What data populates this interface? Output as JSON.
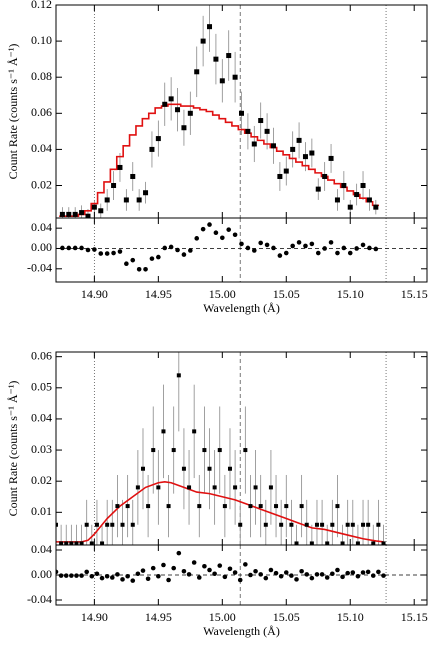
{
  "chart_data": [
    {
      "type": "scatter",
      "ylabel": "Count Rate (counts s⁻¹ Å⁻¹)",
      "color": "#000000",
      "x": [
        14.875,
        14.88,
        14.885,
        14.89,
        14.895,
        14.9,
        14.905,
        14.91,
        14.915,
        14.92,
        14.925,
        14.93,
        14.935,
        14.94,
        14.945,
        14.95,
        14.955,
        14.96,
        14.965,
        14.97,
        14.975,
        14.98,
        14.985,
        14.99,
        14.995,
        15,
        15.005,
        15.01,
        15.015,
        15.02,
        15.025,
        15.03,
        15.035,
        15.04,
        15.045,
        15.05,
        15.055,
        15.06,
        15.065,
        15.07,
        15.075,
        15.08,
        15.085,
        15.09,
        15.095,
        15.1,
        15.105,
        15.11,
        15.115,
        15.12
      ],
      "values": [
        0.004,
        0.004,
        0.004,
        0.005,
        0.003,
        0.008,
        0.006,
        0.012,
        0.02,
        0.03,
        0.012,
        0.025,
        0.012,
        0.016,
        0.04,
        0.046,
        0.065,
        0.068,
        0.062,
        0.052,
        0.06,
        0.083,
        0.1,
        0.108,
        0.09,
        0.078,
        0.092,
        0.08,
        0.06,
        0.05,
        0.043,
        0.056,
        0.05,
        0.042,
        0.025,
        0.028,
        0.04,
        0.045,
        0.036,
        0.038,
        0.018,
        0.025,
        0.035,
        0.012,
        0.02,
        0.008,
        0.015,
        0.02,
        0.012,
        0.008
      ],
      "errors": [
        0.004,
        0.004,
        0.004,
        0.004,
        0.004,
        0.004,
        0.004,
        0.006,
        0.008,
        0.008,
        0.006,
        0.008,
        0.006,
        0.006,
        0.01,
        0.01,
        0.012,
        0.012,
        0.012,
        0.01,
        0.012,
        0.014,
        0.014,
        0.014,
        0.014,
        0.012,
        0.014,
        0.014,
        0.012,
        0.01,
        0.01,
        0.01,
        0.01,
        0.01,
        0.008,
        0.008,
        0.01,
        0.01,
        0.008,
        0.008,
        0.006,
        0.008,
        0.008,
        0.006,
        0.008,
        0.004,
        0.006,
        0.008,
        0.006,
        0.004
      ],
      "model": {
        "color": "#e01010",
        "step": true,
        "values": [
          0.003,
          0.003,
          0.003,
          0.004,
          0.006,
          0.01,
          0.016,
          0.022,
          0.029,
          0.036,
          0.042,
          0.048,
          0.053,
          0.057,
          0.06,
          0.063,
          0.064,
          0.065,
          0.065,
          0.064,
          0.064,
          0.063,
          0.062,
          0.061,
          0.059,
          0.057,
          0.055,
          0.053,
          0.051,
          0.049,
          0.047,
          0.045,
          0.043,
          0.041,
          0.039,
          0.037,
          0.035,
          0.033,
          0.031,
          0.029,
          0.027,
          0.025,
          0.023,
          0.021,
          0.019,
          0.017,
          0.015,
          0.013,
          0.011,
          0.009
        ]
      },
      "xlim": [
        14.87,
        15.16
      ],
      "ylim": [
        0.002,
        0.12
      ],
      "xticks": [
        14.9,
        14.95,
        15,
        15.05,
        15.1,
        15.15
      ],
      "yticks": [
        0.02,
        0.04,
        0.06,
        0.08,
        {
          "value": 0.1,
          "label": "0.10"
        },
        0.12
      ],
      "vlines": [
        {
          "x": 14.9,
          "style": "dotted"
        },
        {
          "x": 15.014,
          "style": "dashed"
        },
        {
          "x": 15.128,
          "style": "dotted"
        }
      ]
    },
    {
      "type": "residual",
      "xlabel": "Wavelength (Å)",
      "color": "#000000",
      "x": [
        14.875,
        14.88,
        14.885,
        14.89,
        14.895,
        14.9,
        14.905,
        14.91,
        14.915,
        14.92,
        14.925,
        14.93,
        14.935,
        14.94,
        14.945,
        14.95,
        14.955,
        14.96,
        14.965,
        14.97,
        14.975,
        14.98,
        14.985,
        14.99,
        14.995,
        15,
        15.005,
        15.01,
        15.015,
        15.02,
        15.025,
        15.03,
        15.035,
        15.04,
        15.045,
        15.05,
        15.055,
        15.06,
        15.065,
        15.07,
        15.075,
        15.08,
        15.085,
        15.09,
        15.095,
        15.1,
        15.105,
        15.11,
        15.115,
        15.12
      ],
      "values": [
        0.001,
        0.001,
        0.001,
        0.001,
        -0.003,
        -0.002,
        -0.01,
        -0.01,
        -0.009,
        -0.006,
        -0.03,
        -0.023,
        -0.041,
        -0.041,
        -0.02,
        -0.017,
        0.001,
        0.003,
        -0.003,
        -0.012,
        -0.004,
        0.02,
        0.038,
        0.047,
        0.031,
        0.021,
        0.037,
        0.027,
        0.009,
        0.001,
        -0.004,
        0.011,
        0.007,
        0.001,
        -0.014,
        -0.009,
        0.005,
        0.012,
        0.005,
        0.009,
        -0.009,
        0,
        0.012,
        -0.009,
        0.001,
        -0.009,
        0,
        0.007,
        0.001,
        -0.001
      ],
      "hline": 0,
      "xlim": [
        14.87,
        15.16
      ],
      "ylim": [
        -0.066,
        0.06
      ],
      "xticks": [
        {
          "value": 14.9,
          "label": "14.90"
        },
        {
          "value": 14.95,
          "label": "14.95"
        },
        {
          "value": 15,
          "label": "15.00"
        },
        {
          "value": 15.05,
          "label": "15.05"
        },
        {
          "value": 15.1,
          "label": "15.10"
        },
        {
          "value": 15.15,
          "label": "15.15"
        }
      ],
      "yticks": [
        0.04,
        {
          "value": 0,
          "label": "0.00"
        },
        -0.04
      ],
      "vlines": [
        {
          "x": 14.9,
          "style": "dotted"
        },
        {
          "x": 15.014,
          "style": "dashed"
        },
        {
          "x": 15.128,
          "style": "dotted"
        }
      ]
    },
    {
      "type": "scatter",
      "ylabel": "Count Rate (counts s⁻¹ Å⁻¹)",
      "color": "#000000",
      "x": [
        14.87,
        14.874,
        14.878,
        14.882,
        14.886,
        14.89,
        14.894,
        14.898,
        14.902,
        14.906,
        14.91,
        14.914,
        14.918,
        14.922,
        14.926,
        14.93,
        14.934,
        14.938,
        14.942,
        14.946,
        14.95,
        14.954,
        14.958,
        14.962,
        14.966,
        14.97,
        14.974,
        14.978,
        14.982,
        14.986,
        14.99,
        14.994,
        14.998,
        15.002,
        15.006,
        15.01,
        15.014,
        15.018,
        15.022,
        15.026,
        15.03,
        15.034,
        15.038,
        15.042,
        15.046,
        15.05,
        15.054,
        15.058,
        15.062,
        15.066,
        15.07,
        15.074,
        15.078,
        15.082,
        15.086,
        15.09,
        15.094,
        15.098,
        15.102,
        15.106,
        15.11,
        15.114,
        15.118,
        15.122,
        15.126
      ],
      "values": [
        0.006,
        0,
        0,
        0,
        0,
        0,
        0.006,
        0,
        0.006,
        0,
        0.006,
        0.006,
        0.012,
        0.006,
        0.012,
        0.006,
        0.018,
        0.024,
        0.012,
        0.03,
        0.018,
        0.036,
        0.012,
        0.03,
        0.054,
        0.024,
        0.018,
        0.036,
        0.012,
        0.03,
        0.024,
        0.018,
        0.03,
        0.012,
        0.024,
        0.018,
        0.006,
        0.03,
        0.012,
        0.018,
        0.012,
        0.006,
        0.018,
        0.012,
        0.006,
        0.012,
        0.006,
        0,
        0.012,
        0.006,
        0,
        0.006,
        0.006,
        0,
        0.006,
        0.012,
        0,
        0.006,
        0.006,
        0,
        0.006,
        0.006,
        0,
        0.006,
        0
      ],
      "errors": [
        0.008,
        0.006,
        0.006,
        0.006,
        0.006,
        0.006,
        0.008,
        0.006,
        0.008,
        0.006,
        0.008,
        0.008,
        0.01,
        0.008,
        0.01,
        0.008,
        0.012,
        0.013,
        0.01,
        0.014,
        0.012,
        0.015,
        0.01,
        0.014,
        0.018,
        0.013,
        0.012,
        0.015,
        0.01,
        0.014,
        0.013,
        0.012,
        0.014,
        0.01,
        0.013,
        0.012,
        0.008,
        0.014,
        0.01,
        0.012,
        0.01,
        0.008,
        0.012,
        0.01,
        0.008,
        0.01,
        0.008,
        0.006,
        0.01,
        0.008,
        0.006,
        0.008,
        0.008,
        0.006,
        0.008,
        0.01,
        0.006,
        0.008,
        0.008,
        0.006,
        0.008,
        0.008,
        0.006,
        0.008,
        0.006
      ],
      "model": {
        "color": "#e01010",
        "step": false,
        "x": [
          14.87,
          14.88,
          14.89,
          14.895,
          14.9,
          14.91,
          14.92,
          14.93,
          14.94,
          14.95,
          14.955,
          14.96,
          14.97,
          14.98,
          14.99,
          15,
          15.01,
          15.02,
          15.03,
          15.04,
          15.05,
          15.06,
          15.07,
          15.08,
          15.09,
          15.1,
          15.11,
          15.12,
          15.126
        ],
        "values": [
          0.0005,
          0.0005,
          0.0005,
          0.001,
          0.003,
          0.008,
          0.012,
          0.015,
          0.018,
          0.0195,
          0.0198,
          0.0195,
          0.018,
          0.0165,
          0.016,
          0.015,
          0.014,
          0.0125,
          0.011,
          0.0095,
          0.008,
          0.0065,
          0.005,
          0.0045,
          0.0035,
          0.0025,
          0.0015,
          0.0008,
          0.0005
        ]
      },
      "xlim": [
        14.87,
        15.16
      ],
      "ylim": [
        -0.0005,
        0.0615
      ],
      "xticks": [
        14.9,
        14.95,
        15,
        15.05,
        15.1,
        15.15
      ],
      "yticks": [
        0.01,
        0.02,
        0.03,
        0.04,
        0.05,
        0.06
      ],
      "vlines": [
        {
          "x": 14.9,
          "style": "dotted"
        },
        {
          "x": 15.014,
          "style": "dashed"
        },
        {
          "x": 15.128,
          "style": "dotted"
        }
      ]
    },
    {
      "type": "residual",
      "xlabel": "Wavelength (Å)",
      "color": "#000000",
      "x": [
        14.87,
        14.874,
        14.878,
        14.882,
        14.886,
        14.89,
        14.894,
        14.898,
        14.902,
        14.906,
        14.91,
        14.914,
        14.918,
        14.922,
        14.926,
        14.93,
        14.934,
        14.938,
        14.942,
        14.946,
        14.95,
        14.954,
        14.958,
        14.962,
        14.966,
        14.97,
        14.974,
        14.978,
        14.982,
        14.986,
        14.99,
        14.994,
        14.998,
        15.002,
        15.006,
        15.01,
        15.014,
        15.018,
        15.022,
        15.026,
        15.03,
        15.034,
        15.038,
        15.042,
        15.046,
        15.05,
        15.054,
        15.058,
        15.062,
        15.066,
        15.07,
        15.074,
        15.078,
        15.082,
        15.086,
        15.09,
        15.094,
        15.098,
        15.102,
        15.106,
        15.11,
        15.114,
        15.118,
        15.122,
        15.126
      ],
      "values": [
        0.005,
        -0.001,
        -0.001,
        -0.001,
        -0.001,
        -0.001,
        0.005,
        -0.002,
        0.002,
        -0.005,
        -0.002,
        -0.004,
        0.001,
        -0.007,
        -0.002,
        -0.009,
        0.002,
        0.007,
        -0.006,
        0.011,
        -0.002,
        0.016,
        -0.008,
        0.011,
        0.035,
        0.006,
        0.001,
        0.02,
        -0.004,
        0.014,
        0.008,
        0.002,
        0.015,
        -0.003,
        0.01,
        0.004,
        -0.008,
        0.017,
        0,
        0.006,
        0.001,
        -0.005,
        0.008,
        0.003,
        -0.002,
        0.004,
        -0.001,
        -0.007,
        0.006,
        0.001,
        -0.005,
        0.001,
        0.001,
        -0.004,
        0.002,
        0.008,
        -0.003,
        0.003,
        0.004,
        -0.002,
        0.004,
        0.005,
        -0.001,
        0.005,
        -0.001
      ],
      "hline": 0,
      "xlim": [
        14.87,
        15.16
      ],
      "ylim": [
        -0.048,
        0.048
      ],
      "xticks": [
        {
          "value": 14.9,
          "label": "14.90"
        },
        {
          "value": 14.95,
          "label": "14.95"
        },
        {
          "value": 15,
          "label": "15.00"
        },
        {
          "value": 15.05,
          "label": "15.05"
        },
        {
          "value": 15.1,
          "label": "15.10"
        },
        {
          "value": 15.15,
          "label": "15.15"
        }
      ],
      "yticks": [
        0.04,
        {
          "value": 0,
          "label": "0.00"
        },
        -0.04
      ],
      "vlines": [
        {
          "x": 14.9,
          "style": "dotted"
        },
        {
          "x": 15.014,
          "style": "dashed"
        },
        {
          "x": 15.128,
          "style": "dotted"
        }
      ]
    }
  ]
}
